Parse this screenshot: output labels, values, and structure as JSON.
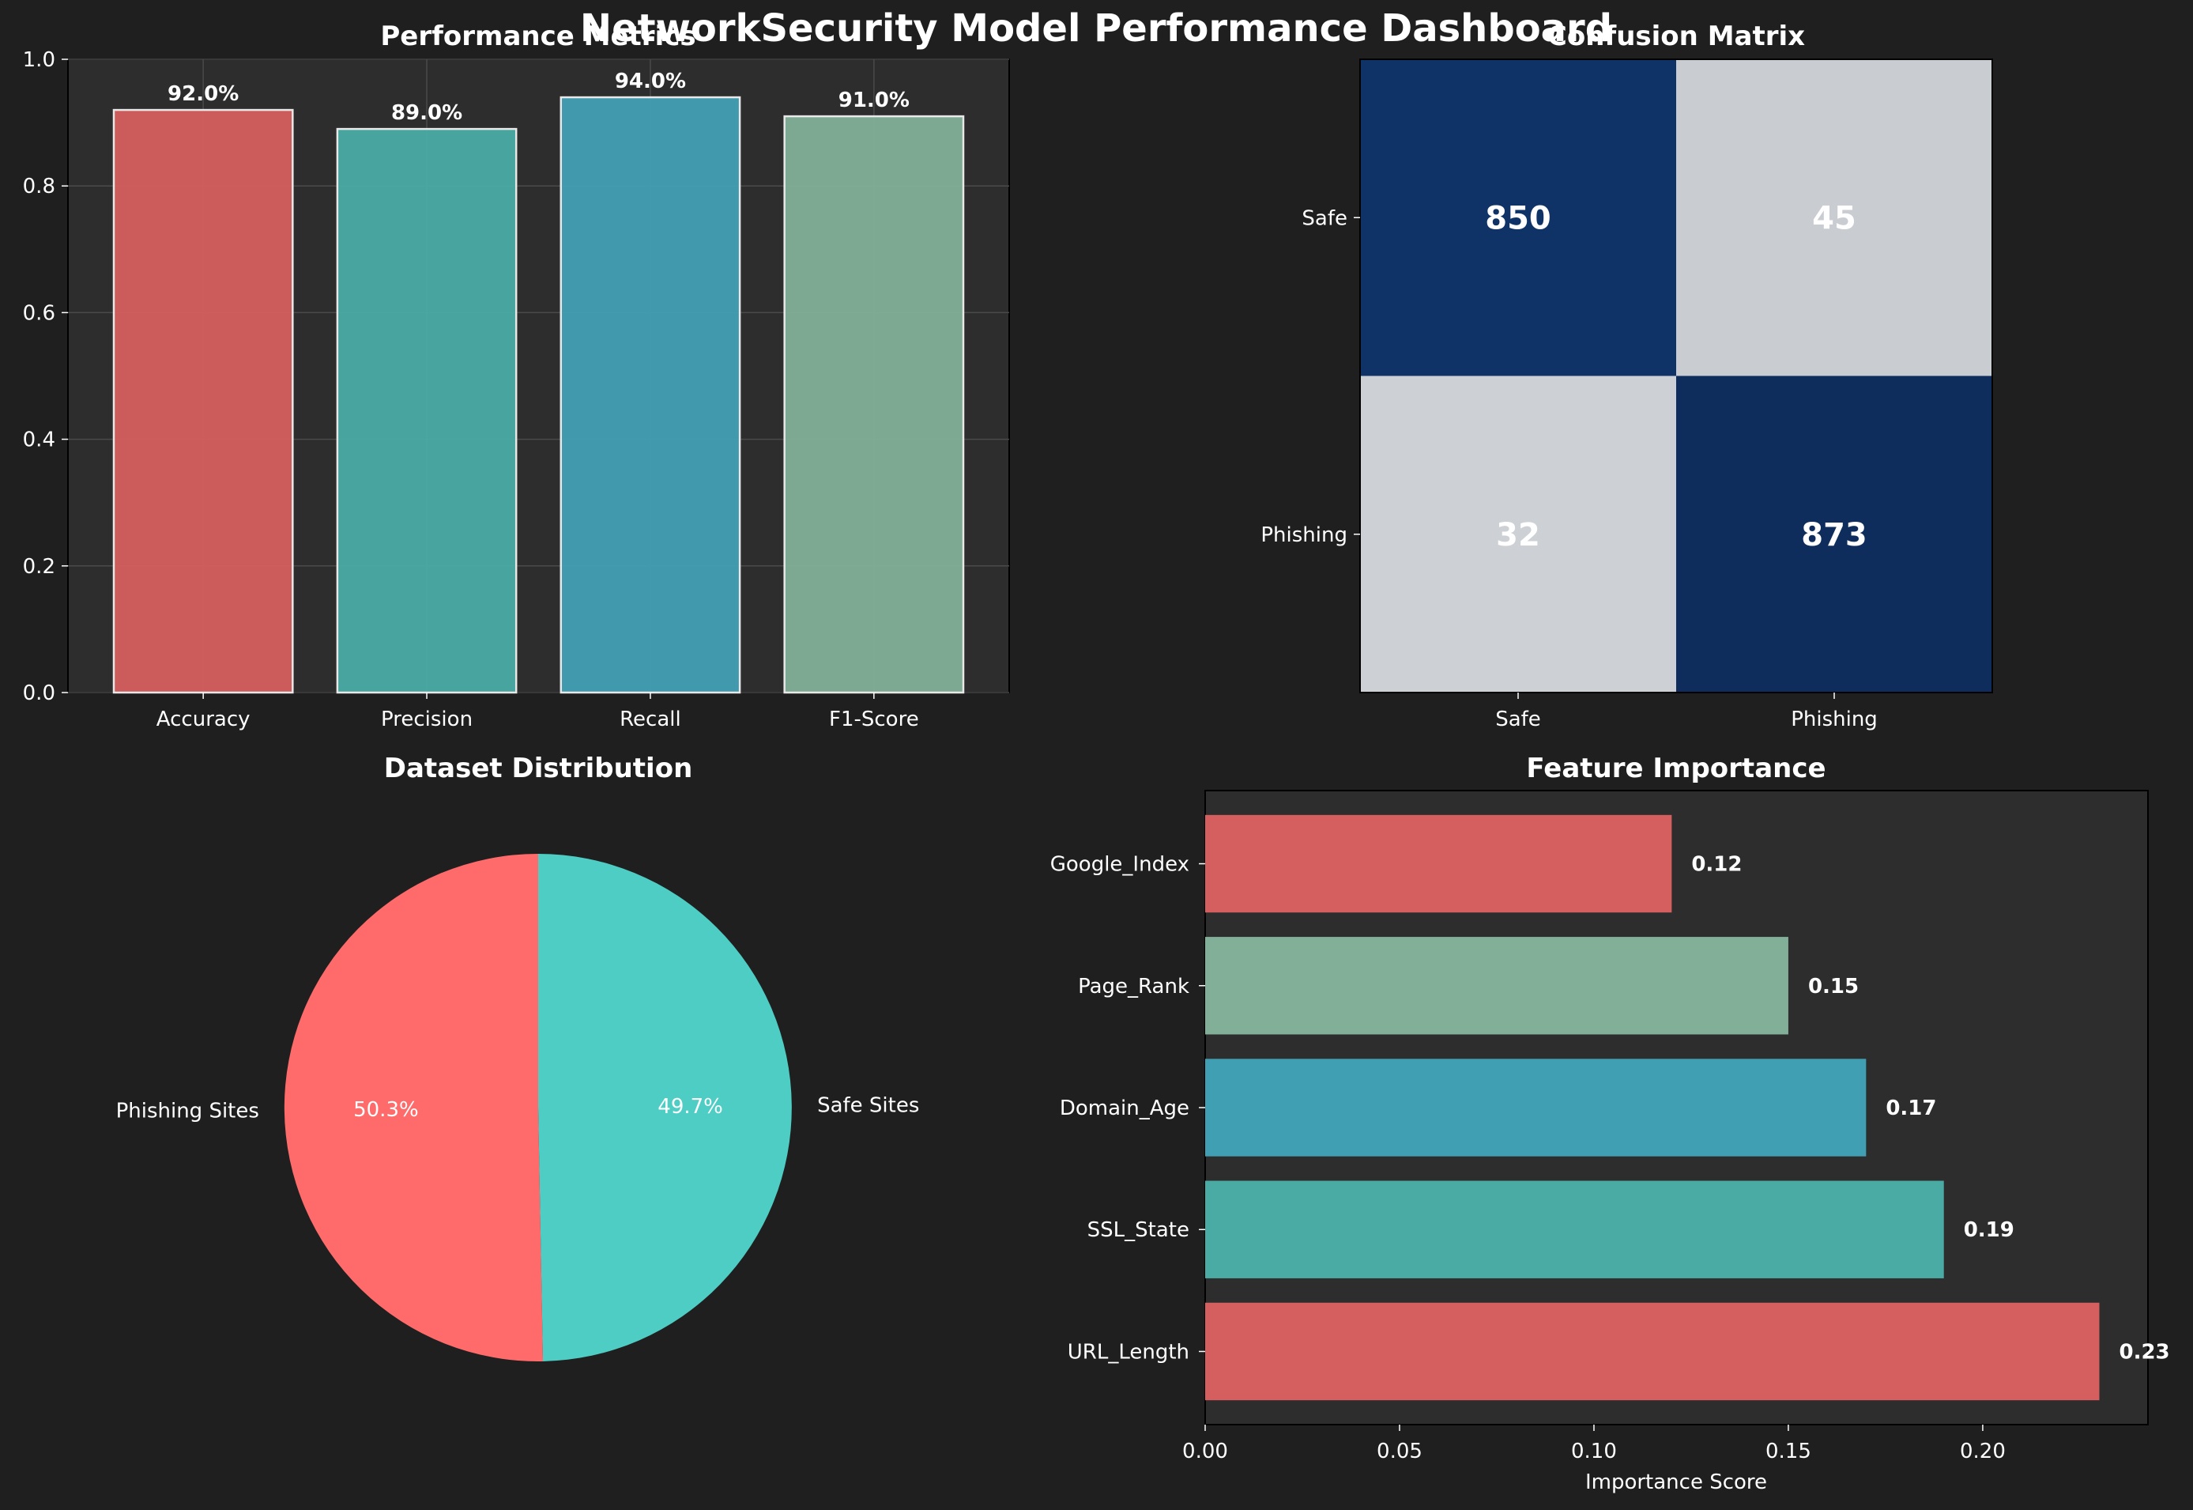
{
  "figure": {
    "title": "NetworkSecurity Model Performance Dashboard",
    "background": "#1f1f1f",
    "axes_background": "#2d2d2d"
  },
  "chart_data": [
    {
      "type": "bar",
      "title": "Performance Metrics",
      "categories": [
        "Accuracy",
        "Precision",
        "Recall",
        "F1-Score"
      ],
      "values": [
        0.92,
        0.89,
        0.94,
        0.91
      ],
      "value_labels": [
        "92.0%",
        "89.0%",
        "94.0%",
        "91.0%"
      ],
      "colors": [
        "#d55e5e",
        "#4aaba4",
        "#419fb3",
        "#82af98"
      ],
      "ylim": [
        0,
        1.0
      ],
      "yticks": [
        0.0,
        0.2,
        0.4,
        0.6,
        0.8,
        1.0
      ],
      "ytick_labels": [
        "0.0",
        "0.2",
        "0.4",
        "0.6",
        "0.8",
        "1.0"
      ],
      "grid": true
    },
    {
      "type": "heatmap",
      "title": "Confusion Matrix",
      "rows": [
        "Safe",
        "Phishing"
      ],
      "cols": [
        "Safe",
        "Phishing"
      ],
      "values": [
        [
          850,
          45
        ],
        [
          32,
          873
        ]
      ],
      "colors": [
        [
          "#0f3366",
          "#c9ccd1"
        ],
        [
          "#cdd1d5",
          "#0e2d5c"
        ]
      ]
    },
    {
      "type": "pie",
      "title": "Dataset Distribution",
      "labels": [
        "Phishing Sites",
        "Safe Sites"
      ],
      "values": [
        50.3,
        49.7
      ],
      "pct_labels": [
        "50.3%",
        "49.7%"
      ],
      "colors": [
        "#ff6b6b",
        "#4ecdc4"
      ]
    },
    {
      "type": "bar",
      "orientation": "horizontal",
      "title": "Feature Importance",
      "xlabel": "Importance Score",
      "categories": [
        "URL_Length",
        "SSL_State",
        "Domain_Age",
        "Page_Rank",
        "Google_Index"
      ],
      "values": [
        0.23,
        0.19,
        0.17,
        0.15,
        0.12
      ],
      "value_labels": [
        "0.23",
        "0.19",
        "0.17",
        "0.15",
        "0.12"
      ],
      "colors": [
        "#d55e5e",
        "#4aaba4",
        "#419fb3",
        "#82af98",
        "#d55e5e"
      ],
      "xlim": [
        0,
        0.2425
      ],
      "xticks": [
        0.0,
        0.05,
        0.1,
        0.15,
        0.2
      ],
      "xtick_labels": [
        "0.00",
        "0.05",
        "0.10",
        "0.15",
        "0.20"
      ]
    }
  ]
}
